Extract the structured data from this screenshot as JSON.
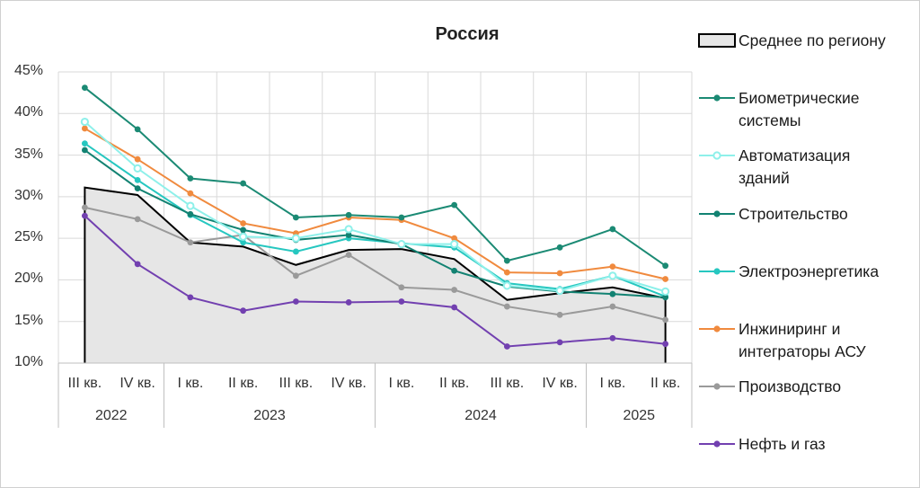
{
  "chart_data": {
    "type": "line",
    "title": "Россия",
    "ylim": [
      0.1,
      0.45
    ],
    "y_ticks": [
      "45%",
      "40%",
      "35%",
      "30%",
      "25%",
      "20%",
      "15%",
      "10%"
    ],
    "categories": [
      "III кв.",
      "IV кв.",
      "I кв.",
      "II кв.",
      "III кв.",
      "IV кв.",
      "I кв.",
      "II кв.",
      "III кв.",
      "IV кв.",
      "I кв.",
      "II кв."
    ],
    "years": [
      {
        "label": "2022",
        "start": 0,
        "end": 1
      },
      {
        "label": "2023",
        "start": 2,
        "end": 5
      },
      {
        "label": "2024",
        "start": 6,
        "end": 9
      },
      {
        "label": "2025",
        "start": 10,
        "end": 11
      }
    ],
    "grid": true,
    "legend_position": "right",
    "area_series": {
      "name": "Среднее по региону",
      "color": "#000000",
      "fill": "#e6e6e6",
      "values": [
        0.311,
        0.302,
        0.245,
        0.24,
        0.218,
        0.236,
        0.237,
        0.225,
        0.176,
        0.184,
        0.191,
        0.178
      ]
    },
    "series": [
      {
        "name": "Биометрические системы",
        "color": "#1b8a74",
        "marker": "filled",
        "values": [
          0.431,
          0.381,
          0.322,
          0.316,
          0.275,
          0.278,
          0.275,
          0.29,
          0.223,
          0.239,
          0.261,
          0.217
        ]
      },
      {
        "name": "Автоматизация зданий",
        "color": "#8ef0ea",
        "marker": "hollow",
        "values": [
          0.39,
          0.334,
          0.289,
          0.252,
          0.25,
          0.261,
          0.243,
          0.243,
          0.193,
          0.187,
          0.205,
          0.186
        ]
      },
      {
        "name": "Строительство",
        "color": "#128272",
        "marker": "filled",
        "values": [
          0.356,
          0.31,
          0.279,
          0.26,
          0.248,
          0.254,
          0.243,
          0.211,
          0.192,
          0.186,
          0.183,
          0.179
        ]
      },
      {
        "name": "Электроэнергетика",
        "color": "#26c7c0",
        "marker": "filled",
        "values": [
          0.364,
          0.32,
          0.278,
          0.245,
          0.234,
          0.25,
          0.244,
          0.239,
          0.196,
          0.189,
          0.205,
          0.18
        ]
      },
      {
        "name": "Инжиниринг и интеграторы АСУ",
        "color": "#f08a3e",
        "marker": "filled",
        "values": [
          0.382,
          0.345,
          0.304,
          0.268,
          0.256,
          0.275,
          0.272,
          0.25,
          0.209,
          0.208,
          0.216,
          0.201
        ]
      },
      {
        "name": "Производство",
        "color": "#9a9a9a",
        "marker": "filled",
        "values": [
          0.287,
          0.273,
          0.245,
          0.254,
          0.205,
          0.23,
          0.191,
          0.188,
          0.168,
          0.158,
          0.168,
          0.152
        ]
      },
      {
        "name": "Нефть и газ",
        "color": "#7240b0",
        "marker": "filled",
        "values": [
          0.277,
          0.219,
          0.179,
          0.163,
          0.174,
          0.173,
          0.174,
          0.167,
          0.12,
          0.125,
          0.13,
          0.123
        ]
      }
    ]
  },
  "legend": {
    "items": [
      {
        "label": "Среднее по региону",
        "kind": "area"
      },
      {
        "label": "Биометрические\nсистемы",
        "kind": "line",
        "series": 0
      },
      {
        "label": "Автоматизация\nзданий",
        "kind": "line",
        "series": 1
      },
      {
        "label": "Строительство",
        "kind": "line",
        "series": 2
      },
      {
        "label": "Электроэнергетика",
        "kind": "line",
        "series": 3
      },
      {
        "label": "Инжиниринг и\nинтеграторы АСУ",
        "kind": "line",
        "series": 4
      },
      {
        "label": "Производство",
        "kind": "line",
        "series": 5
      },
      {
        "label": "Нефть и газ",
        "kind": "line",
        "series": 6
      }
    ]
  }
}
